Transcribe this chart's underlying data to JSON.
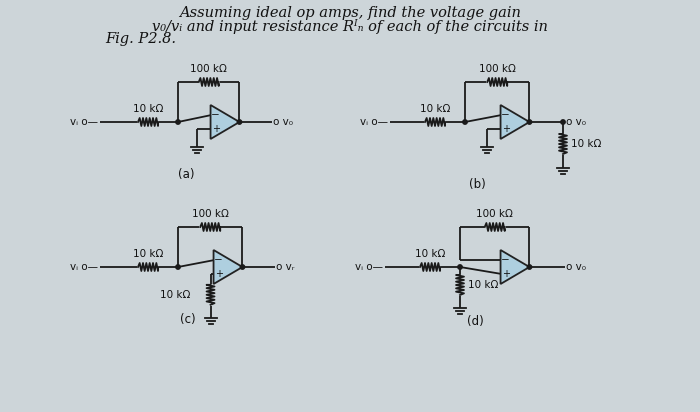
{
  "bg_color": "#cdd5d9",
  "title_line1": "Assuming ideal op amps, find the voltage gain",
  "title_line2": "v₀/vᵢ and input resistance Rᴵₙ of each of the circuits in",
  "title_line3": "Fig. P2.8.",
  "wire_color": "#1a1a1a",
  "opamp_fill": "#aecfdf",
  "opamp_edge": "#222222",
  "text_color": "#111111",
  "font_size_title": 10.5,
  "font_size_label": 8.5,
  "font_size_component": 7.5
}
